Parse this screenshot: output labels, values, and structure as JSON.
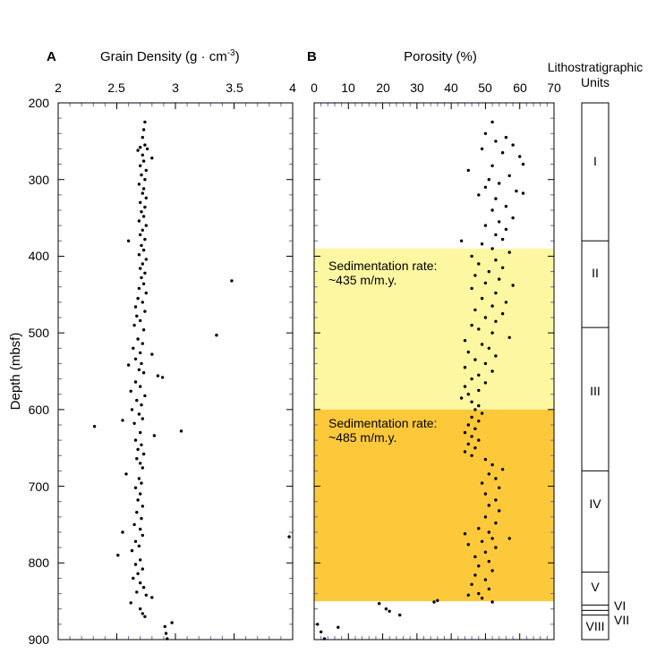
{
  "panel_a_letter": "A",
  "panel_b_letter": "B",
  "ylabel": "Depth (mbsf)",
  "units_title_line1": "Lithostratigraphic",
  "units_title_line2": "Units",
  "colors": {
    "zone1": "#fdf7a2",
    "zone2": "#fdc93a",
    "points": "#000000",
    "axis": "#000000",
    "minor_tick": "#6b6bb0"
  },
  "chart_data": [
    {
      "type": "scatter",
      "title_main": "Grain Density (g · cm",
      "title_exp": "-3",
      "title_end": ")",
      "xlabel": "Grain Density (g · cm-3)",
      "ylabel": "Depth (mbsf)",
      "xlim": [
        2,
        4
      ],
      "ylim": [
        900,
        200
      ],
      "xticks": [
        "2",
        "2.5",
        "3",
        "3.5",
        "4"
      ],
      "yticks": [
        "200",
        "300",
        "400",
        "500",
        "600",
        "700",
        "800",
        "900"
      ],
      "grid": false,
      "points": [
        [
          2.74,
          225
        ],
        [
          2.73,
          235
        ],
        [
          2.72,
          245
        ],
        [
          2.74,
          255
        ],
        [
          2.7,
          258
        ],
        [
          2.76,
          260
        ],
        [
          2.68,
          262
        ],
        [
          2.72,
          268
        ],
        [
          2.8,
          272
        ],
        [
          2.73,
          276
        ],
        [
          2.7,
          282
        ],
        [
          2.75,
          288
        ],
        [
          2.71,
          294
        ],
        [
          2.74,
          300
        ],
        [
          2.69,
          306
        ],
        [
          2.73,
          312
        ],
        [
          2.72,
          318
        ],
        [
          2.75,
          324
        ],
        [
          2.7,
          330
        ],
        [
          2.74,
          336
        ],
        [
          2.71,
          342
        ],
        [
          2.73,
          348
        ],
        [
          2.69,
          354
        ],
        [
          2.75,
          360
        ],
        [
          2.72,
          366
        ],
        [
          2.7,
          372
        ],
        [
          2.74,
          378
        ],
        [
          2.6,
          380
        ],
        [
          2.71,
          386
        ],
        [
          2.73,
          392
        ],
        [
          2.69,
          398
        ],
        [
          2.75,
          404
        ],
        [
          2.72,
          410
        ],
        [
          2.7,
          416
        ],
        [
          2.74,
          422
        ],
        [
          2.71,
          428
        ],
        [
          3.48,
          432
        ],
        [
          2.73,
          436
        ],
        [
          2.69,
          442
        ],
        [
          2.75,
          448
        ],
        [
          2.68,
          455
        ],
        [
          2.72,
          460
        ],
        [
          2.66,
          466
        ],
        [
          2.74,
          472
        ],
        [
          2.67,
          478
        ],
        [
          2.7,
          484
        ],
        [
          2.65,
          490
        ],
        [
          2.73,
          496
        ],
        [
          3.35,
          503
        ],
        [
          2.68,
          508
        ],
        [
          2.72,
          514
        ],
        [
          2.64,
          520
        ],
        [
          2.7,
          526
        ],
        [
          2.8,
          528
        ],
        [
          2.66,
          534
        ],
        [
          2.71,
          540
        ],
        [
          2.6,
          542
        ],
        [
          2.69,
          548
        ],
        [
          2.73,
          552
        ],
        [
          2.85,
          556
        ],
        [
          2.89,
          558
        ],
        [
          2.66,
          564
        ],
        [
          2.7,
          570
        ],
        [
          2.62,
          576
        ],
        [
          2.74,
          582
        ],
        [
          2.67,
          588
        ],
        [
          2.71,
          594
        ],
        [
          2.63,
          600
        ],
        [
          2.69,
          606
        ],
        [
          2.72,
          612
        ],
        [
          2.55,
          614
        ],
        [
          2.65,
          618
        ],
        [
          2.31,
          622
        ],
        [
          3.05,
          628
        ],
        [
          2.7,
          630
        ],
        [
          2.82,
          634
        ],
        [
          2.66,
          640
        ],
        [
          2.71,
          646
        ],
        [
          2.68,
          652
        ],
        [
          2.73,
          658
        ],
        [
          2.67,
          664
        ],
        [
          2.7,
          670
        ],
        [
          2.72,
          676
        ],
        [
          2.58,
          684
        ],
        [
          2.69,
          690
        ],
        [
          2.71,
          696
        ],
        [
          2.66,
          702
        ],
        [
          2.7,
          710
        ],
        [
          2.68,
          718
        ],
        [
          2.72,
          726
        ],
        [
          2.67,
          734
        ],
        [
          2.71,
          742
        ],
        [
          2.65,
          750
        ],
        [
          2.7,
          756
        ],
        [
          2.55,
          760
        ],
        [
          2.72,
          764
        ],
        [
          3.97,
          766
        ],
        [
          2.66,
          772
        ],
        [
          2.69,
          778
        ],
        [
          2.63,
          784
        ],
        [
          2.51,
          790
        ],
        [
          2.7,
          796
        ],
        [
          2.66,
          802
        ],
        [
          2.72,
          808
        ],
        [
          2.68,
          814
        ],
        [
          2.64,
          820
        ],
        [
          2.7,
          826
        ],
        [
          2.73,
          832
        ],
        [
          2.67,
          838
        ],
        [
          2.75,
          842
        ],
        [
          2.8,
          845
        ],
        [
          2.62,
          852
        ],
        [
          2.7,
          860
        ],
        [
          2.72,
          866
        ],
        [
          2.74,
          870
        ],
        [
          2.97,
          878
        ],
        [
          2.91,
          883
        ],
        [
          2.92,
          892
        ],
        [
          2.93,
          899
        ]
      ]
    },
    {
      "type": "scatter",
      "title": "Porosity (%)",
      "xlabel": "Porosity (%)",
      "ylabel": "Depth (mbsf)",
      "xlim": [
        0,
        70
      ],
      "ylim": [
        900,
        200
      ],
      "xticks": [
        "0",
        "10",
        "20",
        "30",
        "40",
        "50",
        "60",
        "70"
      ],
      "yticks": [
        "200",
        "300",
        "400",
        "500",
        "600",
        "700",
        "800",
        "900"
      ],
      "grid": false,
      "shaded_ranges": [
        {
          "from": 390,
          "to": 600,
          "label_line1": "Sedimentation rate:",
          "label_line2": "~435 m/m.y."
        },
        {
          "from": 600,
          "to": 850,
          "label_line1": "Sedimentation rate:",
          "label_line2": "~485 m/m.y."
        }
      ],
      "points": [
        [
          52,
          225
        ],
        [
          50,
          240
        ],
        [
          56,
          245
        ],
        [
          53,
          250
        ],
        [
          58,
          255
        ],
        [
          49,
          260
        ],
        [
          55,
          265
        ],
        [
          60,
          270
        ],
        [
          61,
          280
        ],
        [
          52,
          282
        ],
        [
          45,
          288
        ],
        [
          57,
          295
        ],
        [
          51,
          300
        ],
        [
          54,
          305
        ],
        [
          50,
          310
        ],
        [
          59,
          315
        ],
        [
          61,
          318
        ],
        [
          53,
          325
        ],
        [
          48,
          320
        ],
        [
          56,
          335
        ],
        [
          52,
          340
        ],
        [
          58,
          350
        ],
        [
          54,
          355
        ],
        [
          50,
          360
        ],
        [
          56,
          365
        ],
        [
          53,
          372
        ],
        [
          55,
          378
        ],
        [
          43,
          380
        ],
        [
          49,
          384
        ],
        [
          52,
          390
        ],
        [
          57,
          395
        ],
        [
          46,
          400
        ],
        [
          53,
          405
        ],
        [
          48,
          410
        ],
        [
          55,
          415
        ],
        [
          51,
          420
        ],
        [
          47,
          425
        ],
        [
          54,
          430
        ],
        [
          50,
          435
        ],
        [
          58,
          438
        ],
        [
          46,
          442
        ],
        [
          53,
          448
        ],
        [
          49,
          455
        ],
        [
          56,
          460
        ],
        [
          52,
          465
        ],
        [
          47,
          470
        ],
        [
          55,
          475
        ],
        [
          50,
          480
        ],
        [
          53,
          485
        ],
        [
          46,
          490
        ],
        [
          48,
          495
        ],
        [
          52,
          500
        ],
        [
          57,
          506
        ],
        [
          44,
          510
        ],
        [
          49,
          515
        ],
        [
          51,
          520
        ],
        [
          45,
          525
        ],
        [
          53,
          530
        ],
        [
          47,
          535
        ],
        [
          50,
          540
        ],
        [
          44,
          545
        ],
        [
          52,
          550
        ],
        [
          48,
          555
        ],
        [
          46,
          560
        ],
        [
          50,
          565
        ],
        [
          44,
          570
        ],
        [
          48,
          575
        ],
        [
          45,
          580
        ],
        [
          43,
          585
        ],
        [
          46,
          590
        ],
        [
          48,
          595
        ],
        [
          47,
          600
        ],
        [
          49,
          605
        ],
        [
          46,
          610
        ],
        [
          48,
          615
        ],
        [
          45,
          620
        ],
        [
          47,
          625
        ],
        [
          44,
          630
        ],
        [
          46,
          635
        ],
        [
          48,
          640
        ],
        [
          45,
          645
        ],
        [
          47,
          650
        ],
        [
          44,
          655
        ],
        [
          46,
          660
        ],
        [
          50,
          665
        ],
        [
          52,
          672
        ],
        [
          55,
          678
        ],
        [
          51,
          684
        ],
        [
          53,
          690
        ],
        [
          49,
          696
        ],
        [
          54,
          702
        ],
        [
          50,
          710
        ],
        [
          53,
          718
        ],
        [
          51,
          725
        ],
        [
          54,
          732
        ],
        [
          50,
          740
        ],
        [
          53,
          748
        ],
        [
          48,
          755
        ],
        [
          51,
          760
        ],
        [
          44,
          762
        ],
        [
          52,
          768
        ],
        [
          57,
          768
        ],
        [
          49,
          772
        ],
        [
          45,
          776
        ],
        [
          53,
          780
        ],
        [
          50,
          786
        ],
        [
          47,
          792
        ],
        [
          51,
          798
        ],
        [
          48,
          804
        ],
        [
          52,
          810
        ],
        [
          47,
          816
        ],
        [
          50,
          822
        ],
        [
          46,
          828
        ],
        [
          51,
          834
        ],
        [
          48,
          840
        ],
        [
          45,
          842
        ],
        [
          49,
          846
        ],
        [
          52,
          851
        ],
        [
          36,
          849
        ],
        [
          35,
          851
        ],
        [
          19,
          853
        ],
        [
          21,
          860
        ],
        [
          22,
          863
        ],
        [
          25,
          868
        ],
        [
          1,
          880
        ],
        [
          7,
          884
        ],
        [
          2,
          890
        ],
        [
          3,
          899
        ]
      ]
    }
  ],
  "units": [
    {
      "label": "I",
      "top": 200,
      "bottom": 380
    },
    {
      "label": "II",
      "top": 380,
      "bottom": 493
    },
    {
      "label": "III",
      "top": 493,
      "bottom": 680
    },
    {
      "label": "IV",
      "top": 680,
      "bottom": 812
    },
    {
      "label": "V",
      "top": 812,
      "bottom": 855
    },
    {
      "label": "VI",
      "top": 855,
      "bottom": 862
    },
    {
      "label": "VII",
      "top": 862,
      "bottom": 868
    },
    {
      "label": "VIII",
      "top": 868,
      "bottom": 900
    }
  ]
}
